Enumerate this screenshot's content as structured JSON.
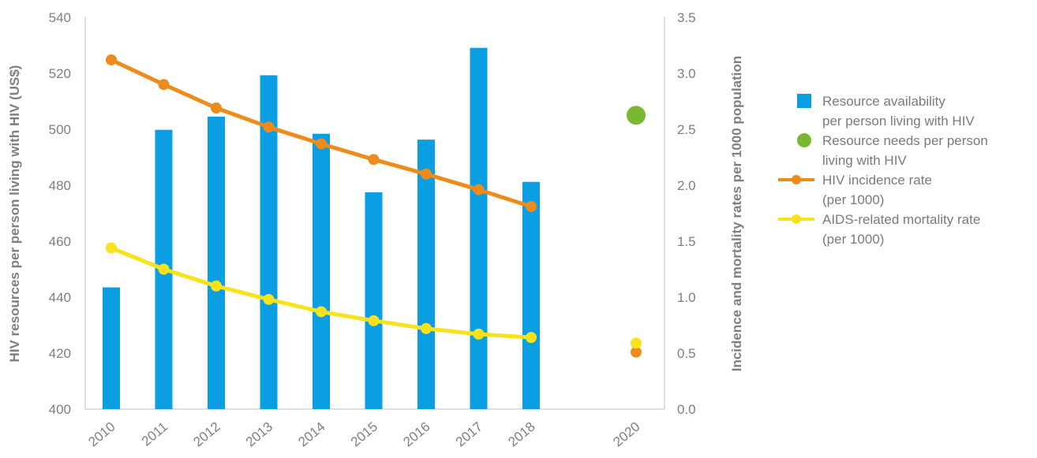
{
  "chart_data": {
    "type": "bar",
    "categories": [
      "2010",
      "2011",
      "2012",
      "2013",
      "2014",
      "2015",
      "2016",
      "2017",
      "2018",
      "2020"
    ],
    "y_left": {
      "label": "HIV resources per person living with HIV (US$)",
      "ylim": [
        400,
        540
      ],
      "ticks": [
        "400",
        "420",
        "440",
        "460",
        "480",
        "500",
        "520",
        "540"
      ]
    },
    "y_right": {
      "label": "Incidence and mortality rates per 1000 population",
      "ylim": [
        0,
        3.5
      ],
      "ticks": [
        "0.0",
        "0.5",
        "1.0",
        "1.5",
        "2.0",
        "2.5",
        "3.0",
        "3.5"
      ]
    },
    "grid": false,
    "legend_position": "right",
    "series": [
      {
        "name_lines": [
          "Resource availability",
          "per person living with HIV"
        ],
        "kind": "bar",
        "axis": "left",
        "color": "#0b9ee2",
        "x": [
          "2010",
          "2011",
          "2012",
          "2013",
          "2014",
          "2015",
          "2016",
          "2017",
          "2018"
        ],
        "values": [
          443.5,
          499.8,
          504.5,
          519.3,
          498.4,
          477.5,
          496.3,
          529.1,
          481.2
        ]
      },
      {
        "name_lines": [
          "Resource needs per person",
          "living with HIV"
        ],
        "kind": "point",
        "axis": "left",
        "color": "#7ab833",
        "x": [
          "2020"
        ],
        "values": [
          505
        ]
      },
      {
        "name_lines": [
          "HIV incidence rate",
          "(per 1000)"
        ],
        "kind": "line",
        "axis": "right",
        "color": "#ee8b1d",
        "x": [
          "2010",
          "2011",
          "2012",
          "2013",
          "2014",
          "2015",
          "2016",
          "2017",
          "2018"
        ],
        "values": [
          3.12,
          2.9,
          2.69,
          2.52,
          2.37,
          2.23,
          2.1,
          1.96,
          1.81
        ],
        "extra_point": {
          "x": "2020",
          "value": 0.51
        }
      },
      {
        "name_lines": [
          "AIDS-related mortality rate",
          "(per 1000)"
        ],
        "kind": "line",
        "axis": "right",
        "color": "#f8e21a",
        "x": [
          "2010",
          "2011",
          "2012",
          "2013",
          "2014",
          "2015",
          "2016",
          "2017",
          "2018"
        ],
        "values": [
          1.44,
          1.25,
          1.1,
          0.98,
          0.87,
          0.79,
          0.72,
          0.67,
          0.64
        ],
        "extra_point": {
          "x": "2020",
          "value": 0.59
        }
      }
    ]
  }
}
